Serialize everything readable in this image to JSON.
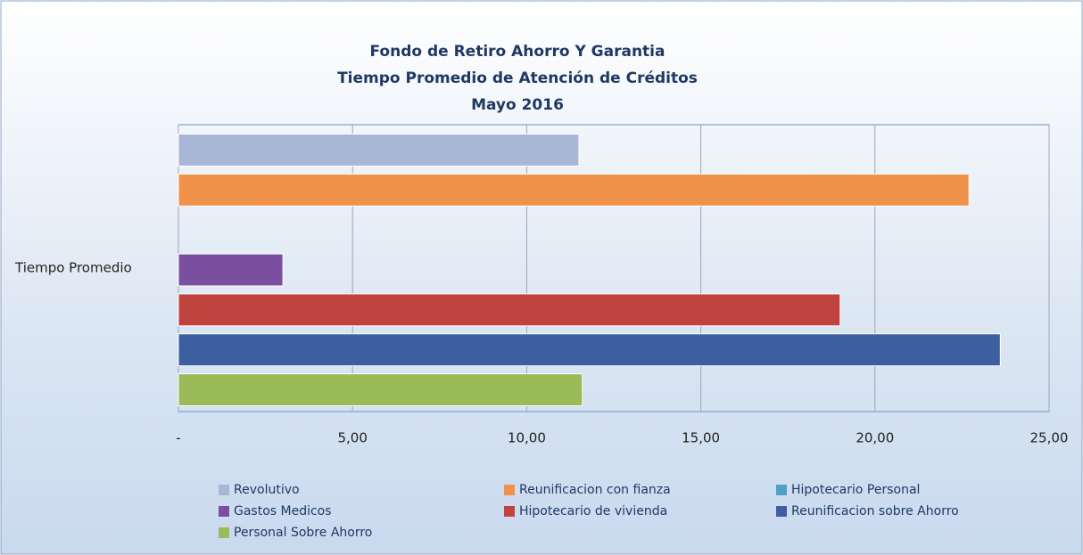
{
  "chart_data": {
    "type": "hbar",
    "title": [
      "Fondo de Retiro Ahorro Y Garantia",
      "Tiempo Promedio de Atención de Créditos",
      "Mayo 2016"
    ],
    "categories": [
      "Tiempo Promedio"
    ],
    "series": [
      {
        "name": "Revolutivo",
        "color": "#a7b7d5",
        "values": [
          11.5
        ]
      },
      {
        "name": "Reunificacion con fianza",
        "color": "#f0924a",
        "values": [
          22.7
        ]
      },
      {
        "name": "Hipotecario Personal",
        "color": "#4f9fc5",
        "values": [
          0
        ]
      },
      {
        "name": "Gastos Medicos",
        "color": "#7b4fa0",
        "values": [
          3.0
        ]
      },
      {
        "name": "Hipotecario de vivienda",
        "color": "#c0433f",
        "values": [
          19.0
        ]
      },
      {
        "name": "Reunificacion sobre Ahorro",
        "color": "#3e5ea2",
        "values": [
          23.6
        ]
      },
      {
        "name": "Personal Sobre Ahorro",
        "color": "#9bbb59",
        "values": [
          11.6
        ]
      }
    ],
    "xlim": [
      0,
      25
    ],
    "xticks": [
      {
        "value": 0,
        "label": "-"
      },
      {
        "value": 5,
        "label": "5,00"
      },
      {
        "value": 10,
        "label": "10,00"
      },
      {
        "value": 15,
        "label": "15,00"
      },
      {
        "value": 20,
        "label": "20,00"
      },
      {
        "value": 25,
        "label": "25,00"
      }
    ],
    "grid": true,
    "legend": "bottom"
  }
}
